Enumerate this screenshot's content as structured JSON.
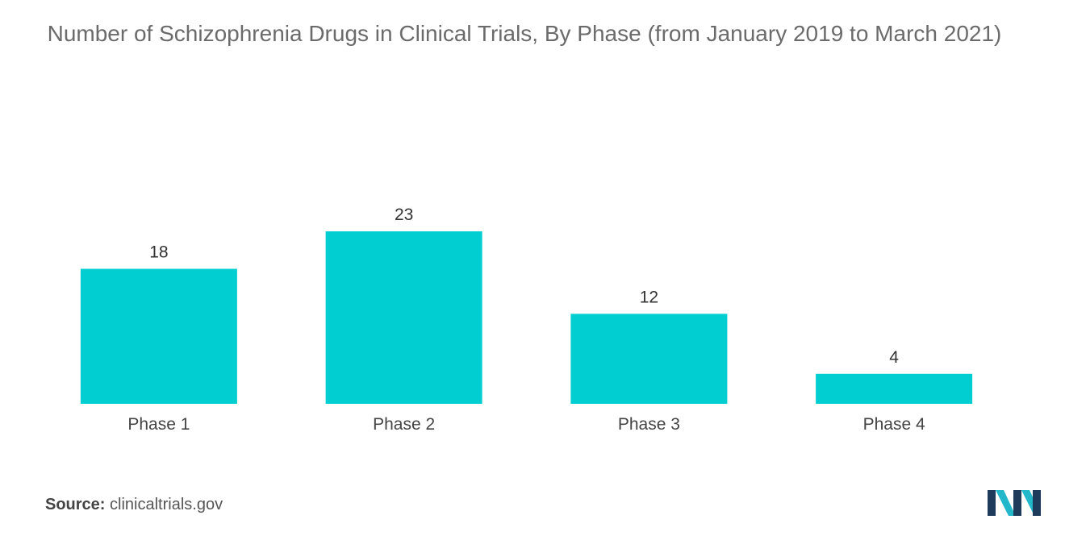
{
  "chart_data": {
    "type": "bar",
    "title": "Number of Schizophrenia Drugs in Clinical Trials, By Phase (from January 2019 to March 2021)",
    "categories": [
      "Phase 1",
      "Phase 2",
      "Phase 3",
      "Phase 4"
    ],
    "values": [
      18,
      23,
      12,
      4
    ],
    "xlabel": "",
    "ylabel": "",
    "ylim": [
      0,
      23
    ],
    "grid": false,
    "bar_color": "#00ced1"
  },
  "source": {
    "label": "Source:",
    "text": "clinicaltrials.gov"
  },
  "logo": {
    "icon": "mordor-intelligence-logo-icon",
    "colors": [
      "#1f3b5c",
      "#22b8c9"
    ]
  }
}
